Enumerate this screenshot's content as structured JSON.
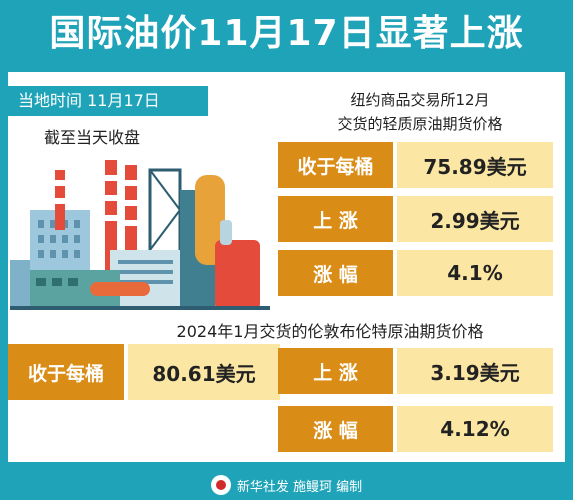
{
  "header": {
    "title": "国际油价11月17日显著上涨"
  },
  "left": {
    "time_label": "当地时间  11月17日",
    "closing_note": "截至当天收盘"
  },
  "nymex": {
    "heading_line1": "纽约商品交易所12月",
    "heading_line2": "交货的轻质原油期货价格",
    "rows": [
      {
        "label": "收于每桶",
        "value": "75.89美元"
      },
      {
        "label": "上  涨",
        "value": "2.99美元"
      },
      {
        "label": "涨  幅",
        "value": "4.1%"
      }
    ]
  },
  "brent": {
    "heading": "2024年1月交货的伦敦布伦特原油期货价格",
    "close_label": "收于每桶",
    "close_value": "80.61美元",
    "rows": [
      {
        "label": "上  涨",
        "value": "3.19美元"
      },
      {
        "label": "涨  幅",
        "value": "4.12%"
      }
    ]
  },
  "footer": {
    "credit": "新华社发  施鳗珂  编制"
  },
  "colors": {
    "background": "#1fa3b8",
    "label_orange": "#d98c16",
    "value_yellow": "#fbe7a3"
  }
}
